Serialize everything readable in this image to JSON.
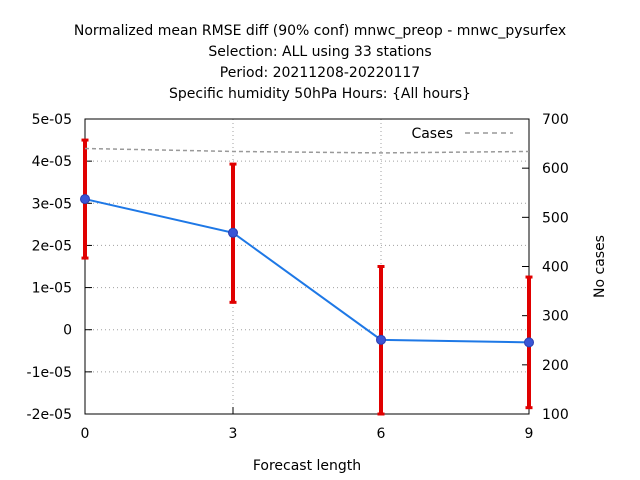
{
  "chart_data": {
    "type": "line",
    "title": [
      "Normalized mean RMSE diff (90% conf) mnwc_preop - mnwc_pysurfex",
      "Selection: ALL using    33 stations",
      "Period: 20211208-20220117",
      "Specific humidity 50hPa   Hours: {All hours}"
    ],
    "xlabel": "Forecast length",
    "ylabel": "",
    "y2label": "No cases",
    "x": [
      0,
      3,
      6,
      9
    ],
    "xlim": [
      0,
      9
    ],
    "ylim": [
      -2e-05,
      5e-05
    ],
    "y2lim": [
      100,
      700
    ],
    "x_ticks": [
      "0",
      "3",
      "6",
      "9"
    ],
    "y_ticks": [
      "-2e-05",
      "-1e-05",
      "0",
      "1e-05",
      "2e-05",
      "3e-05",
      "4e-05",
      "5e-05"
    ],
    "y2_ticks": [
      "100",
      "200",
      "300",
      "400",
      "500",
      "600",
      "700"
    ],
    "grid": true,
    "series": [
      {
        "name": "",
        "axis": "left",
        "color": "#1e78e6",
        "values": [
          3.1e-05,
          2.3e-05,
          -2.4e-06,
          -3e-06
        ],
        "error_low": [
          1.7e-05,
          6.5e-06,
          -2e-05,
          -1.85e-05
        ],
        "error_high": [
          4.5e-05,
          3.93e-05,
          1.5e-05,
          1.25e-05
        ],
        "error_color": "#e00000"
      },
      {
        "name": "Cases",
        "axis": "right",
        "color": "#999999",
        "style": "dashed",
        "values": [
          640,
          634,
          631,
          634
        ]
      }
    ],
    "legend_position": "top-right"
  }
}
